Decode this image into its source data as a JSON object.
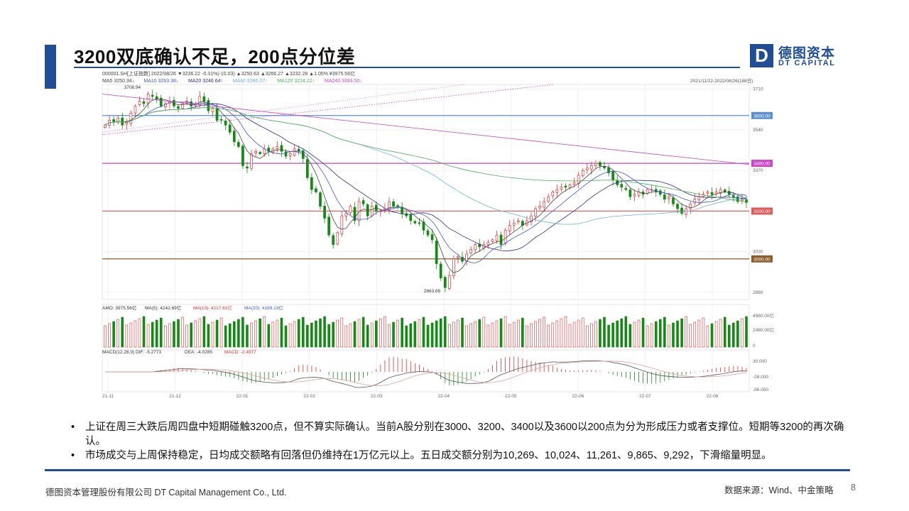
{
  "slide": {
    "title": "3200双底确认不足，200点分位差",
    "logo_cn": "德图资本",
    "logo_en": "DT CAPITAL",
    "logo_mark": "D",
    "bullets": [
      "上证在周三大跌后周四盘中短期碰触3200点，但不算实际确认。当前A股分别在3000、3200、3400以及3600以200点为分为形成压力或者支撑位。短期等3200的再次确认。",
      "市场成交与上周保持稳定，日均成交额略有回落但仍维持在1万亿元以上。五日成交额分别为10,269、10,024、11,261、9,865、9,292，下滑缩量明显。"
    ],
    "footer_left": "德图资本管理股份有限公司  DT Capital Management  Co., Ltd.",
    "footer_right": "数据来源：Wind、中金策略",
    "page_number": "8",
    "colors": {
      "brand": "#1f4e96",
      "up": "#e63232",
      "down": "#138a13"
    }
  },
  "chart_data": {
    "type": "candlestick",
    "header": {
      "line1": "000001.SH[上证指数]  2022/08/26  ▼3236.22  -0.31%(-10.03)  ▲3250.63  ▲3266.27  ▲3232.28  ▲1.05%  ¥3975.56亿",
      "line2": [
        {
          "text": "MA5 3250.34↓",
          "color": "#444444"
        },
        {
          "text": "MA10 3263.38↓",
          "color": "#3b5bdb"
        },
        {
          "text": "MA20 3246.64↑",
          "color": "#2b2b8f"
        },
        {
          "text": "MA60 3286.07↑",
          "color": "#6bb5e6"
        },
        {
          "text": "MA120 3224.22↑",
          "color": "#4caf50"
        },
        {
          "text": "MA240 3393.50↓",
          "color": "#cc44cc"
        }
      ],
      "range": "2021/11/22-2022/08/26(188日)"
    },
    "x_ticks": [
      "21-11",
      "21-12",
      "22-01",
      "22-02",
      "22-03",
      "22-04",
      "22-05",
      "22-06",
      "22-07",
      "22-08"
    ],
    "y_ticks": [
      "3710",
      "3540",
      "3370",
      "3030",
      "2860"
    ],
    "price_levels": [
      {
        "label": "3600.00",
        "value": 3600,
        "color": "#5b8fc9"
      },
      {
        "label": "3400.00",
        "value": 3400,
        "color": "#cc44cc"
      },
      {
        "label": "3200.00",
        "value": 3200,
        "color": "#e05a5a"
      },
      {
        "label": "3000.00",
        "value": 3000,
        "color": "#8b5a2b"
      }
    ],
    "annotations": {
      "high": "3708.94",
      "low": "2863.65"
    },
    "ylim": [
      2830,
      3730
    ],
    "amount_panel": {
      "header": [
        {
          "text": "AMO: 3975.56亿",
          "color": "#333333"
        },
        {
          "text": "MA(5): 4242.69亿",
          "color": "#333333"
        },
        {
          "text": "MA(10): 4217.61亿",
          "color": "#e63232"
        },
        {
          "text": "MA(20): 4169.13亿",
          "color": "#3b5bdb"
        }
      ],
      "y_ticks": [
        "4960.00亿",
        "2480.00亿",
        "0"
      ]
    },
    "macd_panel": {
      "header": [
        {
          "text": "MACD(12,26,9)  DIF: -5.2773",
          "color": "#333333"
        },
        {
          "text": "DEA: -4.0285",
          "color": "#333333"
        },
        {
          "text": "MACD: -2.4977",
          "color": "#e63232"
        }
      ],
      "y_ticks": [
        "30.000",
        "-28.000",
        "-86.000"
      ]
    },
    "series_close": [
      3560,
      3580,
      3575,
      3590,
      3560,
      3570,
      3610,
      3640,
      3660,
      3650,
      3690,
      3680,
      3670,
      3640,
      3650,
      3660,
      3640,
      3630,
      3650,
      3660,
      3640,
      3650,
      3680,
      3660,
      3620,
      3630,
      3580,
      3580,
      3560,
      3530,
      3490,
      3470,
      3390,
      3380,
      3440,
      3450,
      3440,
      3460,
      3450,
      3460,
      3470,
      3450,
      3430,
      3440,
      3460,
      3450,
      3420,
      3340,
      3290,
      3280,
      3220,
      3170,
      3100,
      3060,
      3110,
      3180,
      3190,
      3220,
      3160,
      3240,
      3230,
      3180,
      3220,
      3200,
      3200,
      3210,
      3240,
      3220,
      3220,
      3190,
      3180,
      3160,
      3150,
      3150,
      3120,
      3100,
      3080,
      2980,
      2920,
      2880,
      2930,
      3000,
      3010,
      2990,
      3020,
      3040,
      3060,
      3050,
      3060,
      3070,
      3080,
      3100,
      3060,
      3120,
      3140,
      3150,
      3160,
      3140,
      3160,
      3180,
      3210,
      3220,
      3240,
      3260,
      3280,
      3290,
      3300,
      3300,
      3310,
      3320,
      3350,
      3370,
      3380,
      3390,
      3400,
      3390,
      3380,
      3360,
      3330,
      3310,
      3300,
      3290,
      3260,
      3270,
      3280,
      3270,
      3290,
      3290,
      3280,
      3270,
      3250,
      3260,
      3230,
      3210,
      3190,
      3210,
      3230,
      3250,
      3260,
      3270,
      3280,
      3270,
      3280,
      3290,
      3280,
      3270,
      3260,
      3240,
      3250,
      3236
    ]
  }
}
